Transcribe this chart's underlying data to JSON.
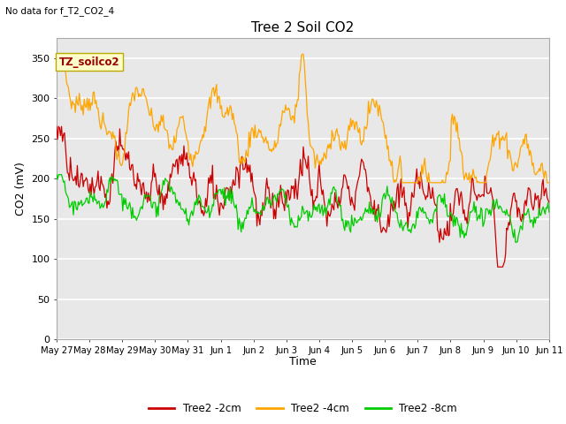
{
  "title": "Tree 2 Soil CO2",
  "subtitle": "No data for f_T2_CO2_4",
  "ylabel": "CO2 (mV)",
  "xlabel": "Time",
  "annotation": "TZ_soilco2",
  "ylim": [
    0,
    375
  ],
  "yticks": [
    0,
    50,
    100,
    150,
    200,
    250,
    300,
    350
  ],
  "fig_bg": "#ffffff",
  "plot_bg": "#e8e8e8",
  "grid_color": "#ffffff",
  "colors": {
    "2cm": "#cc0000",
    "4cm": "#ffa500",
    "8cm": "#00cc00"
  },
  "legend": [
    "Tree2 -2cm",
    "Tree2 -4cm",
    "Tree2 -8cm"
  ],
  "xtick_labels": [
    "May 27",
    "May 28",
    "May 29",
    "May 30",
    "May 31",
    "Jun 1",
    "Jun 2",
    "Jun 3",
    "Jun 4",
    "Jun 5",
    "Jun 6",
    "Jun 7",
    "Jun 8",
    "Jun 9",
    "Jun 10",
    "Jun 11"
  ],
  "num_points": 500
}
